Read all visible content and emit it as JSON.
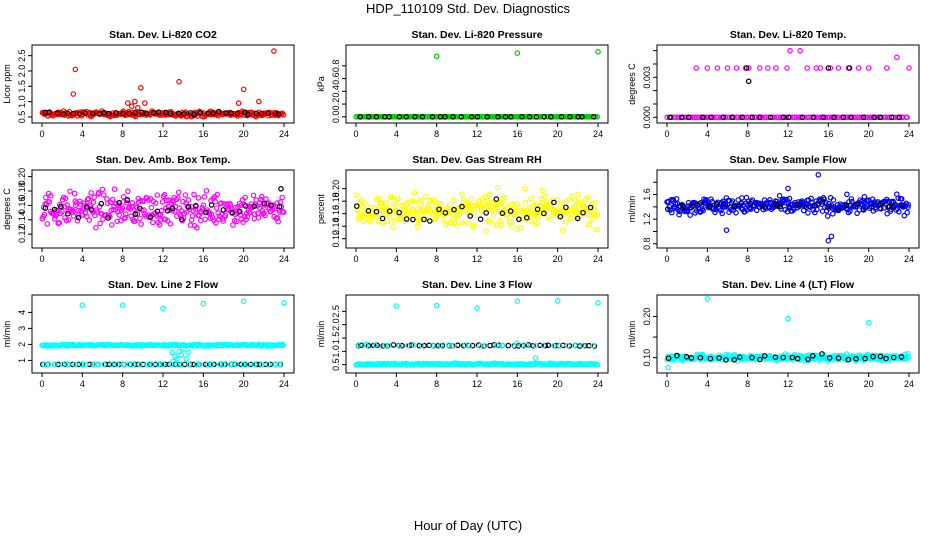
{
  "figure": {
    "title": "HDP_110109  Std. Dev. Diagnostics",
    "x_caption": "Hour of Day (UTC)"
  },
  "chart_data": [
    {
      "type": "scatter",
      "title": "Stan. Dev. Li-820 CO2",
      "ylabel": "Licor ppm",
      "xlim": [
        0,
        24
      ],
      "ylim": [
        0.4,
        2.75
      ],
      "xticks": [
        0,
        4,
        8,
        12,
        16,
        20,
        24
      ],
      "yticks": [
        0.5,
        1.0,
        1.5,
        2.0,
        2.5
      ],
      "yticklabels": [
        "0.5",
        "1.0",
        "1.5",
        "2.0",
        "2.5"
      ],
      "series": [
        {
          "color": "#ff0000",
          "base": 0.6,
          "spread": 0.08,
          "count": 260,
          "outliers": [
            [
              3.1,
              1.25
            ],
            [
              3.3,
              2.05
            ],
            [
              8.5,
              0.95
            ],
            [
              8.9,
              0.85
            ],
            [
              9.2,
              1.0
            ],
            [
              9.5,
              0.8
            ],
            [
              9.8,
              1.45
            ],
            [
              10.2,
              0.95
            ],
            [
              13.6,
              1.65
            ],
            [
              19.5,
              0.95
            ],
            [
              20.0,
              1.4
            ],
            [
              21.5,
              1.0
            ],
            [
              23.0,
              2.65
            ]
          ]
        },
        {
          "color": "#000000",
          "base": 0.62,
          "spread": 0.04,
          "count": 40,
          "outliers": []
        }
      ]
    },
    {
      "type": "scatter",
      "title": "Stan. Dev. Li-820 Pressure",
      "ylabel": "kPa",
      "xlim": [
        0,
        24
      ],
      "ylim": [
        -0.05,
        1.08
      ],
      "xticks": [
        0,
        4,
        8,
        12,
        16,
        20,
        24
      ],
      "yticks": [
        0.0,
        0.2,
        0.4,
        0.6,
        0.8
      ],
      "yticklabels": [
        "0.0",
        "0.2",
        "0.4",
        "0.6",
        "0.8"
      ],
      "series": [
        {
          "color": "#00cc00",
          "base": 0.0,
          "spread": 0.0,
          "count": 140,
          "outliers": [
            [
              0.2,
              0.0
            ],
            [
              8.0,
              0.95
            ],
            [
              16.0,
              1.0
            ],
            [
              24.0,
              1.02
            ]
          ]
        },
        {
          "color": "#000000",
          "base": 0.0,
          "spread": 0.0,
          "count": 30,
          "outliers": []
        }
      ]
    },
    {
      "type": "scatter",
      "title": "Stan. Dev. Li-820 Temp.",
      "ylabel": "degrees C",
      "xlim": [
        0,
        24
      ],
      "ylim": [
        -0.0002,
        0.0052
      ],
      "xticks": [
        0,
        4,
        8,
        12,
        16,
        20,
        24
      ],
      "yticks": [
        0.0,
        0.001,
        0.002,
        0.003,
        0.004,
        0.005
      ],
      "yticklabels": [
        "0.000",
        "",
        "",
        "0.003",
        "",
        ""
      ],
      "series": [
        {
          "color": "#ff00ff",
          "base": 0.0,
          "spread": 0.0,
          "count": 120,
          "outliers": [
            [
              2.9,
              0.0037
            ],
            [
              4.0,
              0.0037
            ],
            [
              5.0,
              0.0037
            ],
            [
              6.0,
              0.0037
            ],
            [
              6.9,
              0.0037
            ],
            [
              7.8,
              0.0037
            ],
            [
              8.1,
              0.0037
            ],
            [
              9.2,
              0.0037
            ],
            [
              10.0,
              0.0037
            ],
            [
              10.8,
              0.0037
            ],
            [
              11.9,
              0.0037
            ],
            [
              12.2,
              0.005
            ],
            [
              13.2,
              0.005
            ],
            [
              13.9,
              0.0037
            ],
            [
              14.8,
              0.0037
            ],
            [
              15.2,
              0.0037
            ],
            [
              16.2,
              0.0037
            ],
            [
              17.0,
              0.0037
            ],
            [
              18.0,
              0.0037
            ],
            [
              19.0,
              0.0037
            ],
            [
              20.0,
              0.0037
            ],
            [
              21.8,
              0.0037
            ],
            [
              22.8,
              0.0045
            ],
            [
              24.0,
              0.0037
            ],
            [
              18.2,
              0.0
            ]
          ]
        },
        {
          "color": "#000000",
          "base": 0.0,
          "spread": 0.0,
          "count": 24,
          "outliers": [
            [
              7.9,
              0.0037
            ],
            [
              8.1,
              0.0027
            ],
            [
              16.0,
              0.0037
            ],
            [
              18.1,
              0.0037
            ]
          ]
        }
      ]
    },
    {
      "type": "scatter",
      "title": "Stan. Dev. Amb. Box Temp.",
      "ylabel": "degrees C",
      "xlim": [
        0,
        24
      ],
      "ylim": [
        0.105,
        0.205
      ],
      "xticks": [
        0,
        4,
        8,
        12,
        16,
        20,
        24
      ],
      "yticks": [
        0.12,
        0.14,
        0.16,
        0.18,
        0.2
      ],
      "yticklabels": [
        "0.12",
        "0.14",
        "0.16",
        "0.18",
        "0.20"
      ],
      "series": [
        {
          "color": "#ff00ff",
          "base": 0.155,
          "spread": 0.022,
          "count": 330,
          "outliers": []
        },
        {
          "color": "#000000",
          "base": 0.156,
          "spread": 0.015,
          "count": 30,
          "outliers": [
            [
              23.7,
              0.183
            ]
          ]
        }
      ]
    },
    {
      "type": "scatter",
      "title": "Stan. Dev. Gas Stream RH",
      "ylabel": "percent",
      "xlim": [
        0,
        24
      ],
      "ylim": [
        0.11,
        0.225
      ],
      "xticks": [
        0,
        4,
        8,
        12,
        16,
        20,
        24
      ],
      "yticks": [
        0.12,
        0.14,
        0.16,
        0.18,
        0.2
      ],
      "yticklabels": [
        "0.12",
        "0.14",
        "0.16",
        "0.18",
        "0.20"
      ],
      "series": [
        {
          "color": "#ffff00",
          "base": 0.165,
          "spread": 0.025,
          "count": 330,
          "outliers": []
        },
        {
          "color": "#000000",
          "base": 0.165,
          "spread": 0.015,
          "count": 30,
          "outliers": []
        }
      ]
    },
    {
      "type": "scatter",
      "title": "Stan. Dev. Sample Flow",
      "ylabel": "ml/min",
      "xlim": [
        0,
        24
      ],
      "ylim": [
        0.78,
        1.95
      ],
      "xticks": [
        0,
        4,
        8,
        12,
        16,
        20,
        24
      ],
      "yticks": [
        0.8,
        1.0,
        1.2,
        1.4,
        1.6,
        1.8
      ],
      "yticklabels": [
        "0.8",
        "",
        "1.2",
        "",
        "1.6",
        ""
      ],
      "series": [
        {
          "color": "#0000ff",
          "base": 1.42,
          "spread": 0.13,
          "count": 330,
          "outliers": [
            [
              5.9,
              1.02
            ],
            [
              12.0,
              1.7
            ],
            [
              15.0,
              1.92
            ],
            [
              16.0,
              0.85
            ],
            [
              16.3,
              0.92
            ]
          ]
        },
        {
          "color": "#000000",
          "base": 1.42,
          "spread": 0.06,
          "count": 30,
          "outliers": []
        }
      ]
    },
    {
      "type": "scatter",
      "title": "Stan. Dev. Line 2 Flow",
      "ylabel": "ml/min",
      "xlim": [
        0,
        24
      ],
      "ylim": [
        0.4,
        4.9
      ],
      "xticks": [
        0,
        4,
        8,
        12,
        16,
        20,
        24
      ],
      "yticks": [
        1,
        2,
        3,
        4
      ],
      "yticklabels": [
        "1",
        "2",
        "3",
        "4"
      ],
      "series": [
        {
          "color": "#00ffff",
          "base": 1.95,
          "spread": 0.05,
          "count": 210,
          "outliers": [
            [
              4.0,
              4.45
            ],
            [
              8.0,
              4.45
            ],
            [
              12.0,
              4.25
            ],
            [
              16.0,
              4.55
            ],
            [
              20.0,
              4.7
            ],
            [
              24.0,
              4.6
            ],
            [
              12.9,
              1.5
            ],
            [
              13.0,
              0.95
            ],
            [
              13.2,
              1.25
            ],
            [
              13.4,
              1.1
            ],
            [
              13.6,
              1.55
            ],
            [
              13.8,
              1.35
            ],
            [
              14.0,
              1.75
            ],
            [
              14.3,
              1.1
            ],
            [
              14.5,
              1.5
            ]
          ]
        },
        {
          "color": "#000000",
          "base": 0.75,
          "spread": 0.0,
          "count": 48,
          "outliers": []
        },
        {
          "color": "#00ffff",
          "base": 0.75,
          "spread": 0.0,
          "count": 40,
          "outliers": []
        }
      ]
    },
    {
      "type": "scatter",
      "title": "Stan. Dev. Line 3 Flow",
      "ylabel": "ml/min",
      "xlim": [
        0,
        24
      ],
      "ylim": [
        0.3,
        3.0
      ],
      "xticks": [
        0,
        4,
        8,
        12,
        16,
        20,
        24
      ],
      "yticks": [
        0.5,
        1.0,
        1.5,
        2.0,
        2.5
      ],
      "yticklabels": [
        "0.5",
        "1.0",
        "1.5",
        "2.0",
        "2.5"
      ],
      "series": [
        {
          "color": "#00ffff",
          "base": 0.52,
          "spread": 0.03,
          "count": 200,
          "outliers": [
            [
              4.0,
              2.7
            ],
            [
              8.0,
              2.72
            ],
            [
              12.0,
              2.62
            ],
            [
              16.0,
              2.88
            ],
            [
              20.0,
              2.9
            ],
            [
              24.0,
              2.82
            ],
            [
              17.8,
              0.75
            ],
            [
              1.0,
              1.28
            ],
            [
              16.0,
              1.3
            ]
          ]
        },
        {
          "color": "#000000",
          "base": 1.22,
          "spread": 0.02,
          "count": 48,
          "outliers": []
        },
        {
          "color": "#00ffff",
          "base": 1.22,
          "spread": 0.02,
          "count": 30,
          "outliers": []
        }
      ]
    },
    {
      "type": "scatter",
      "title": "Stan. Dev. Line 4 (LT) Flow",
      "ylabel": "ml/min",
      "xlim": [
        0,
        24
      ],
      "ylim": [
        0.07,
        0.245
      ],
      "xticks": [
        0,
        4,
        8,
        12,
        16,
        20,
        24
      ],
      "yticks": [
        0.1,
        0.15,
        0.2
      ],
      "yticklabels": [
        "0.10",
        "",
        "0.20"
      ],
      "series": [
        {
          "color": "#00ffff",
          "base": 0.1,
          "spread": 0.007,
          "count": 330,
          "outliers": [
            [
              0.1,
              0.076
            ],
            [
              4.0,
              0.243
            ],
            [
              12.0,
              0.195
            ],
            [
              20.0,
              0.185
            ]
          ]
        },
        {
          "color": "#000000",
          "base": 0.1,
          "spread": 0.006,
          "count": 30,
          "outliers": []
        }
      ]
    }
  ]
}
